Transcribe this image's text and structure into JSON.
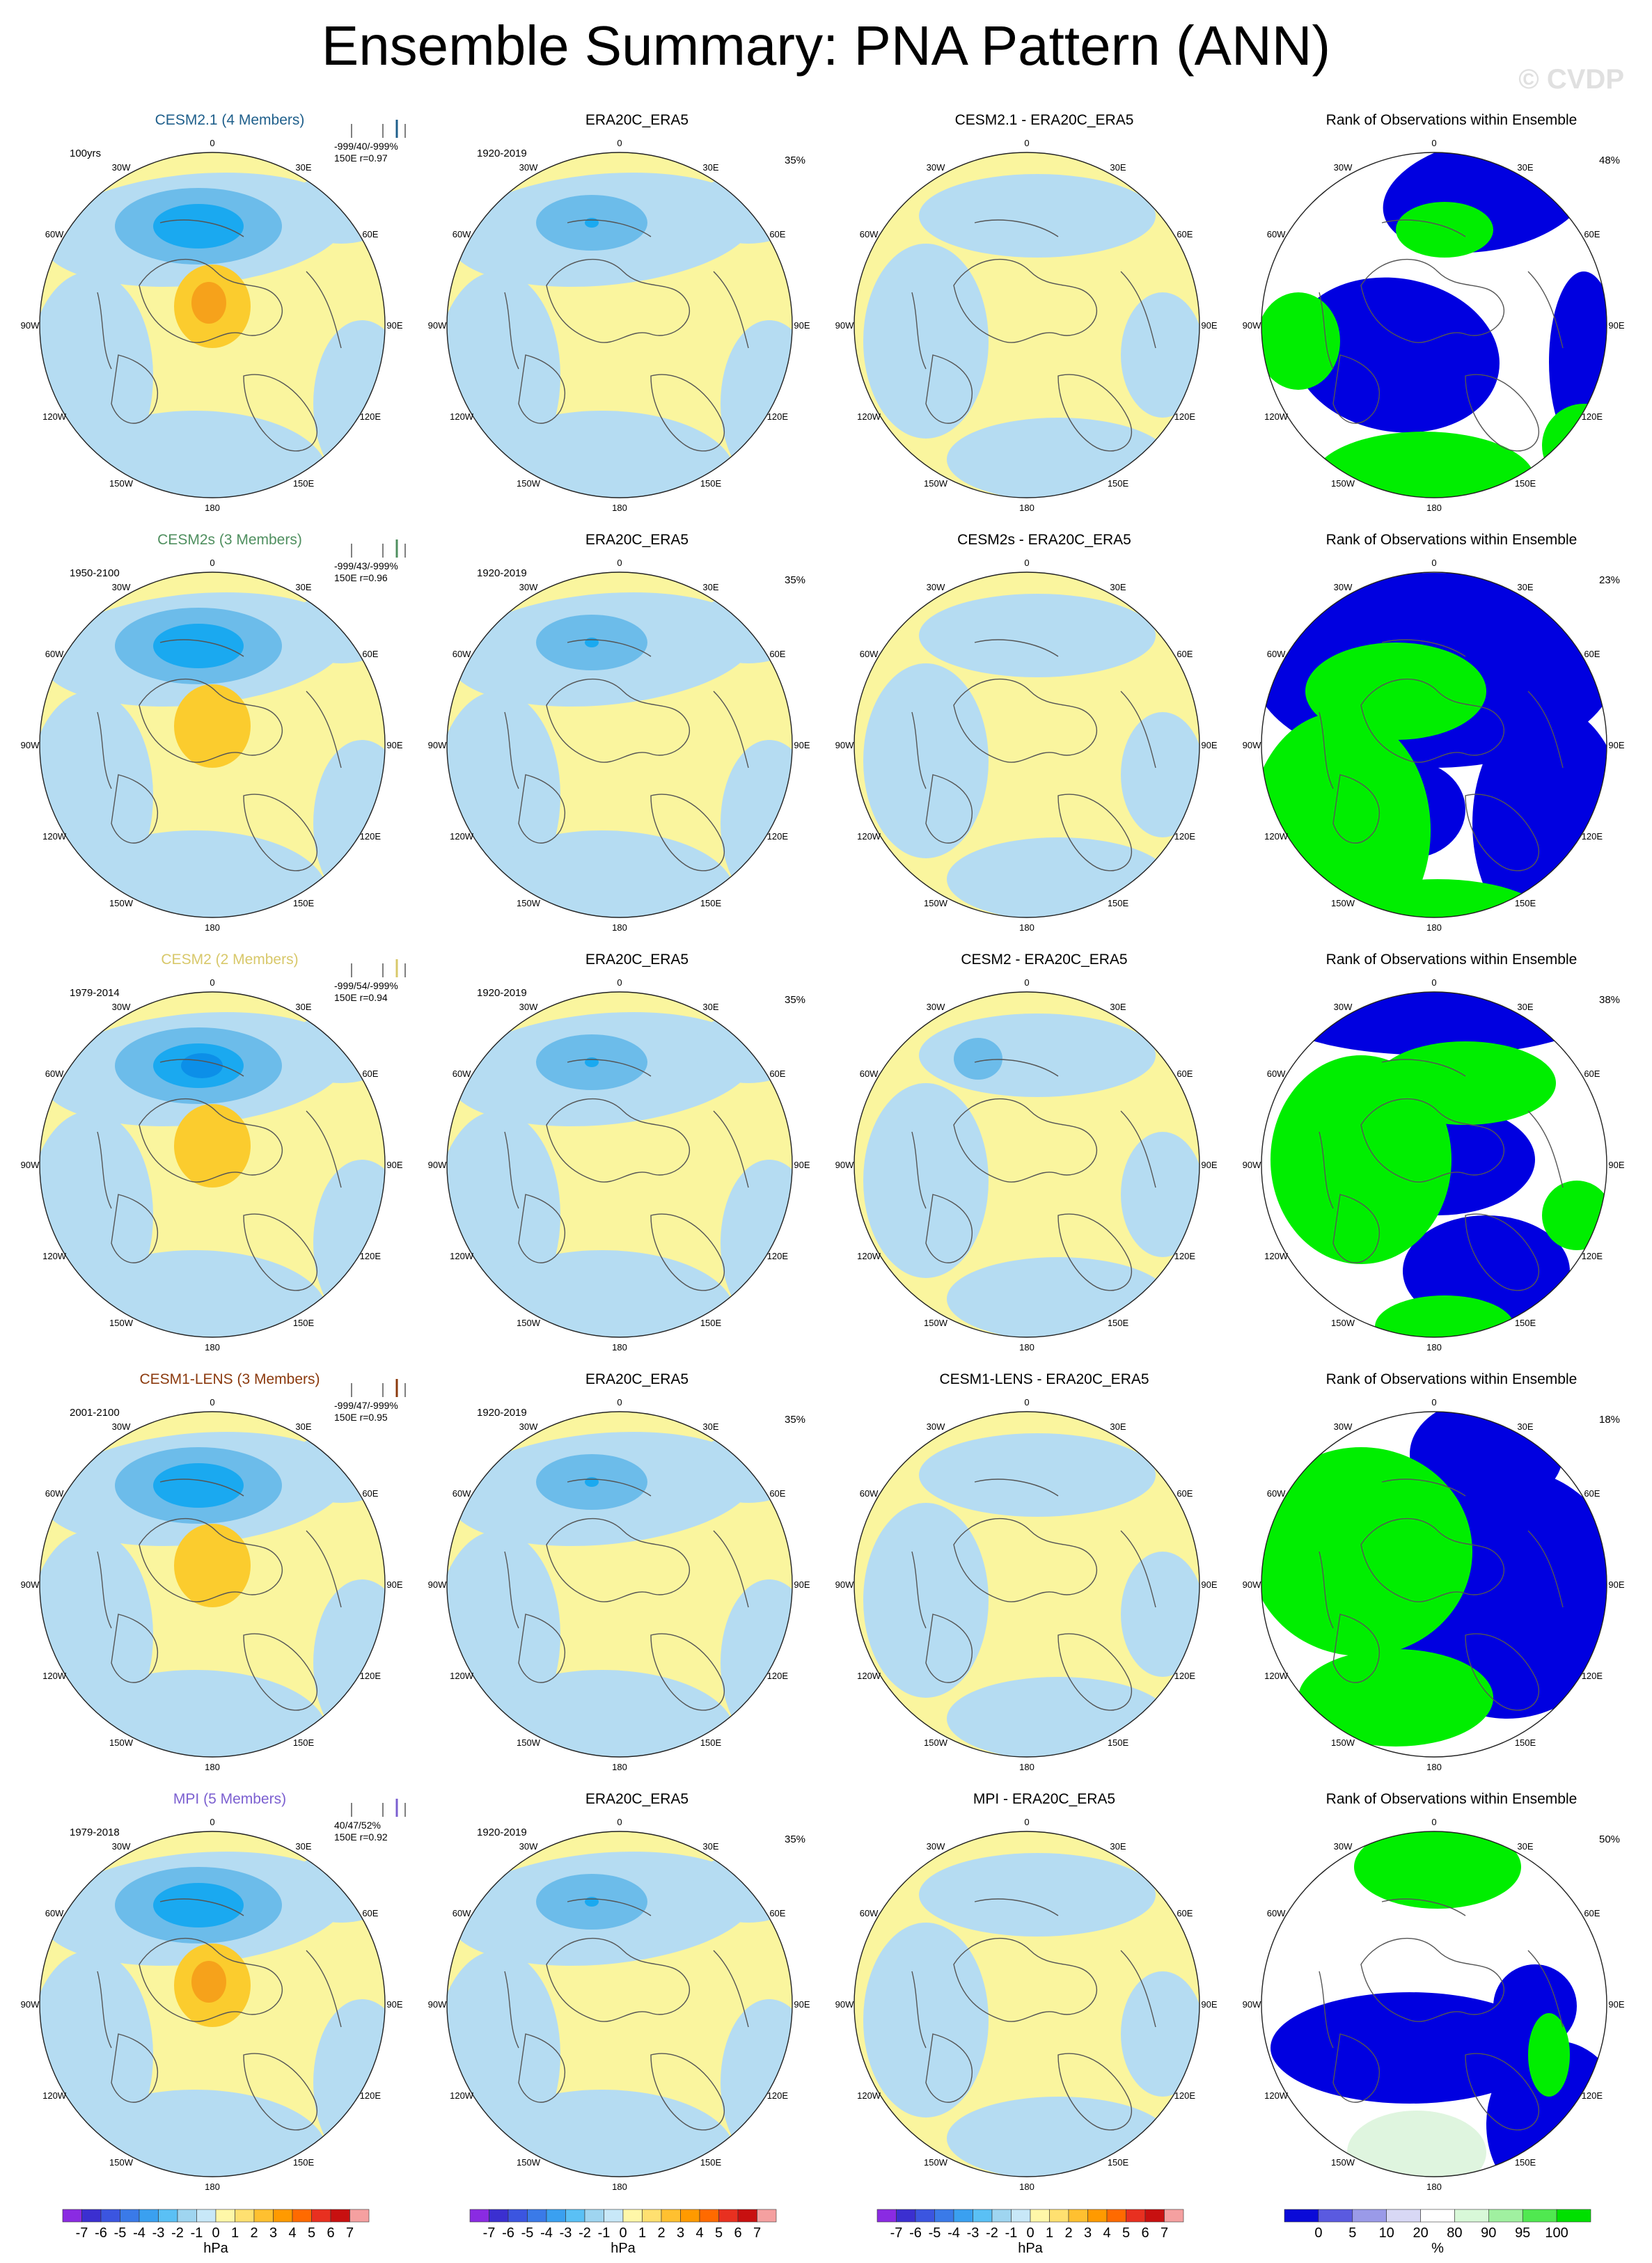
{
  "title": "Ensemble Summary: PNA Pattern (ANN)",
  "watermark": "© CVDP",
  "longitude_labels": [
    "180",
    "150E",
    "120E",
    "90E",
    "60E",
    "30E",
    "0",
    "30W",
    "60W",
    "90W",
    "120W",
    "150W"
  ],
  "ensemble_colors": {
    "CESM2.1": "#1f5f8b",
    "CESM2s": "#4f8f5f",
    "CESM2": "#d8c86a",
    "CESM1-LENS": "#8b3a0e",
    "MPI": "#7b5fd0"
  },
  "rows": [
    {
      "ensemble": {
        "title": "CESM2.1 (4 Members)",
        "period": "100yrs",
        "stats_line1": "-999/40/-999%",
        "stats_line2": "150E r=0.97",
        "color": "#1f5f8b"
      },
      "obs": {
        "title": "ERA20C_ERA5",
        "period": "1920-2019",
        "pct": "35%"
      },
      "diff": {
        "title": "CESM2.1 - ERA20C_ERA5"
      },
      "rank": {
        "title": "Rank of Observations within Ensemble",
        "pct": "48%"
      }
    },
    {
      "ensemble": {
        "title": "CESM2s (3 Members)",
        "period": "1950-2100",
        "stats_line1": "-999/43/-999%",
        "stats_line2": "150E r=0.96",
        "color": "#4f8f5f"
      },
      "obs": {
        "title": "ERA20C_ERA5",
        "period": "1920-2019",
        "pct": "35%"
      },
      "diff": {
        "title": "CESM2s - ERA20C_ERA5"
      },
      "rank": {
        "title": "Rank of Observations within Ensemble",
        "pct": "23%"
      }
    },
    {
      "ensemble": {
        "title": "CESM2 (2 Members)",
        "period": "1979-2014",
        "stats_line1": "-999/54/-999%",
        "stats_line2": "150E r=0.94",
        "color": "#d8c86a"
      },
      "obs": {
        "title": "ERA20C_ERA5",
        "period": "1920-2019",
        "pct": "35%"
      },
      "diff": {
        "title": "CESM2 - ERA20C_ERA5"
      },
      "rank": {
        "title": "Rank of Observations within Ensemble",
        "pct": "38%"
      }
    },
    {
      "ensemble": {
        "title": "CESM1-LENS (3 Members)",
        "period": "2001-2100",
        "stats_line1": "-999/47/-999%",
        "stats_line2": "150E r=0.95",
        "color": "#8b3a0e"
      },
      "obs": {
        "title": "ERA20C_ERA5",
        "period": "1920-2019",
        "pct": "35%"
      },
      "diff": {
        "title": "CESM1-LENS - ERA20C_ERA5"
      },
      "rank": {
        "title": "Rank of Observations within Ensemble",
        "pct": "18%"
      }
    },
    {
      "ensemble": {
        "title": "MPI (5 Members)",
        "period": "1979-2018",
        "stats_line1": "40/47/52%",
        "stats_line2": "150E r=0.92",
        "color": "#7b5fd0"
      },
      "obs": {
        "title": "ERA20C_ERA5",
        "period": "1920-2019",
        "pct": "35%"
      },
      "diff": {
        "title": "MPI - ERA20C_ERA5"
      },
      "rank": {
        "title": "Rank of Observations within Ensemble",
        "pct": "50%"
      }
    }
  ],
  "colorbar_hpa": {
    "labels": [
      "-7",
      "-6",
      "-5",
      "-4",
      "-3",
      "-2",
      "-1",
      "0",
      "1",
      "2",
      "3",
      "4",
      "5",
      "6",
      "7"
    ],
    "unit": "hPa",
    "colors": [
      "#8a2be2",
      "#3b2fd0",
      "#3b55e0",
      "#3a7ae8",
      "#3aa0f0",
      "#5ac0f5",
      "#9fd5f0",
      "#c8e8f8",
      "#fff7a8",
      "#ffe070",
      "#ffc030",
      "#ff9a00",
      "#ff6a00",
      "#e83020",
      "#c81010",
      "#f5a0a0"
    ]
  },
  "colorbar_rank": {
    "labels": [
      "0",
      "5",
      "10",
      "20",
      "80",
      "90",
      "95",
      "100"
    ],
    "unit": "%",
    "colors": [
      "#0a0ad8",
      "#5a5ae0",
      "#9a9ae8",
      "#d8d8f5",
      "#ffffff",
      "#d8f8d8",
      "#a0f0a0",
      "#50e850",
      "#00e000"
    ]
  },
  "palette": {
    "positive": "#faf59e",
    "negative": "#b5dcf2",
    "neg_mid": "#6cbcea",
    "neg_strong": "#1aa9f0",
    "neg_core": "#0c8fe8",
    "pos_mid": "#fbcc2e",
    "pos_strong": "#f6a21b",
    "rank_low": "#0000e0",
    "rank_high": "#00ee00",
    "rank_light": "#dff5df"
  }
}
